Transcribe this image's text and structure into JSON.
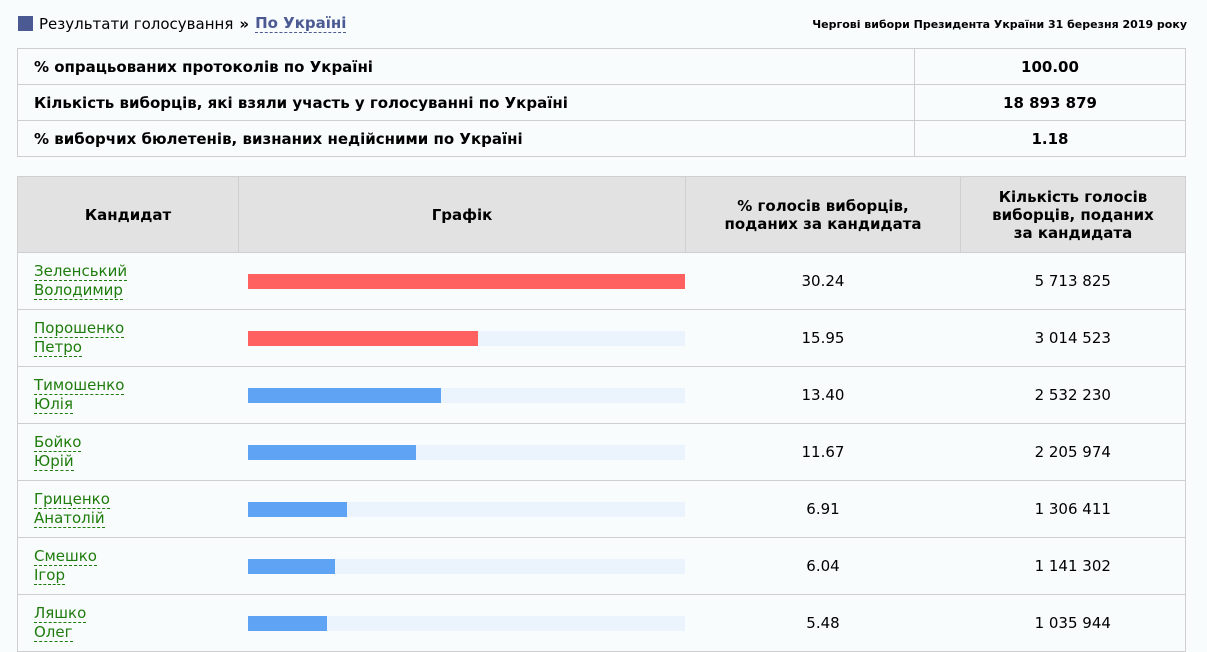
{
  "breadcrumb": {
    "root": "Результати голосування",
    "current": "По Україні"
  },
  "election_title": "Чергові вибори Президента України 31 березня 2019 року",
  "summary": [
    {
      "label": "% опрацьованих протоколів по Україні",
      "value": "100.00"
    },
    {
      "label": "Кількість виборців, які взяли участь у голосуванні по Україні",
      "value": "18 893 879"
    },
    {
      "label": "% виборчих бюлетенів, визнаних недійсними по Україні",
      "value": "1.18"
    }
  ],
  "table": {
    "headers": [
      "Кандидат",
      "Графік",
      "% голосів виборців, поданих за кандидата",
      "Кількість голосів виборців, поданих за кандидата"
    ],
    "colors": {
      "top": "#ff6161",
      "other": "#5fa3f5"
    },
    "max_percent": 30.24,
    "rows": [
      {
        "last": "Зеленський",
        "first": "Володимир",
        "percent": 30.24,
        "percent_text": "30.24",
        "votes": "5 713 825",
        "top": true
      },
      {
        "last": "Порошенко",
        "first": "Петро",
        "percent": 15.95,
        "percent_text": "15.95",
        "votes": "3 014 523",
        "top": true
      },
      {
        "last": "Тимошенко",
        "first": "Юлія",
        "percent": 13.4,
        "percent_text": "13.40",
        "votes": "2 532 230",
        "top": false
      },
      {
        "last": "Бойко",
        "first": "Юрій",
        "percent": 11.67,
        "percent_text": "11.67",
        "votes": "2 205 974",
        "top": false
      },
      {
        "last": "Гриценко",
        "first": "Анатолій",
        "percent": 6.91,
        "percent_text": "6.91",
        "votes": "1 306 411",
        "top": false
      },
      {
        "last": "Смешко",
        "first": "Ігор",
        "percent": 6.04,
        "percent_text": "6.04",
        "votes": "1 141 302",
        "top": false
      },
      {
        "last": "Ляшко",
        "first": "Олег",
        "percent": 5.48,
        "percent_text": "5.48",
        "votes": "1 035 944",
        "top": false
      }
    ]
  }
}
